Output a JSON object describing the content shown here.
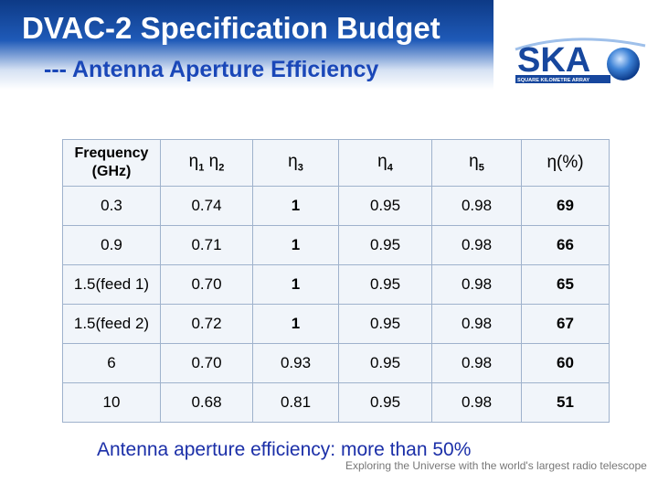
{
  "header": {
    "title": "DVAC-2 Specification Budget",
    "subtitle": "--- Antenna Aperture Efficiency"
  },
  "logo": {
    "text": "SKA",
    "tagline": "SQUARE KILOMETRE ARRAY"
  },
  "table": {
    "headers": {
      "frequency_line1": "Frequency",
      "frequency_line2": "(GHz)",
      "eta12_a": "η",
      "eta12_a_sub": "1",
      "eta12_b": " η",
      "eta12_b_sub": "2",
      "eta3": "η",
      "eta3_sub": "3",
      "eta4": "η",
      "eta4_sub": "4",
      "eta5": "η",
      "eta5_sub": "5",
      "eta_total": "η(%)"
    },
    "rows": [
      {
        "freq": "0.3",
        "eta12": "0.74",
        "eta3": "1",
        "eta4": "0.95",
        "eta5": "0.98",
        "eta": "69"
      },
      {
        "freq": "0.9",
        "eta12": "0.71",
        "eta3": "1",
        "eta4": "0.95",
        "eta5": "0.98",
        "eta": "66"
      },
      {
        "freq": "1.5(feed 1)",
        "eta12": "0.70",
        "eta3": "1",
        "eta4": "0.95",
        "eta5": "0.98",
        "eta": "65"
      },
      {
        "freq": "1.5(feed 2)",
        "eta12": "0.72",
        "eta3": "1",
        "eta4": "0.95",
        "eta5": "0.98",
        "eta": "67"
      },
      {
        "freq": "6",
        "eta12": "0.70",
        "eta3": "0.93",
        "eta4": "0.95",
        "eta5": "0.98",
        "eta": "60"
      },
      {
        "freq": "10",
        "eta12": "0.68",
        "eta3": "0.81",
        "eta4": "0.95",
        "eta5": "0.98",
        "eta": "51"
      }
    ]
  },
  "footnote": "Antenna aperture efficiency:  more than 50%",
  "tagline": "Exploring the Universe with the world's largest radio telescope",
  "colors": {
    "header_blue": "#1f5ab8",
    "subtitle_blue": "#1a47b8",
    "footnote_blue": "#1b2fa8",
    "table_bg": "#f1f5fa"
  }
}
